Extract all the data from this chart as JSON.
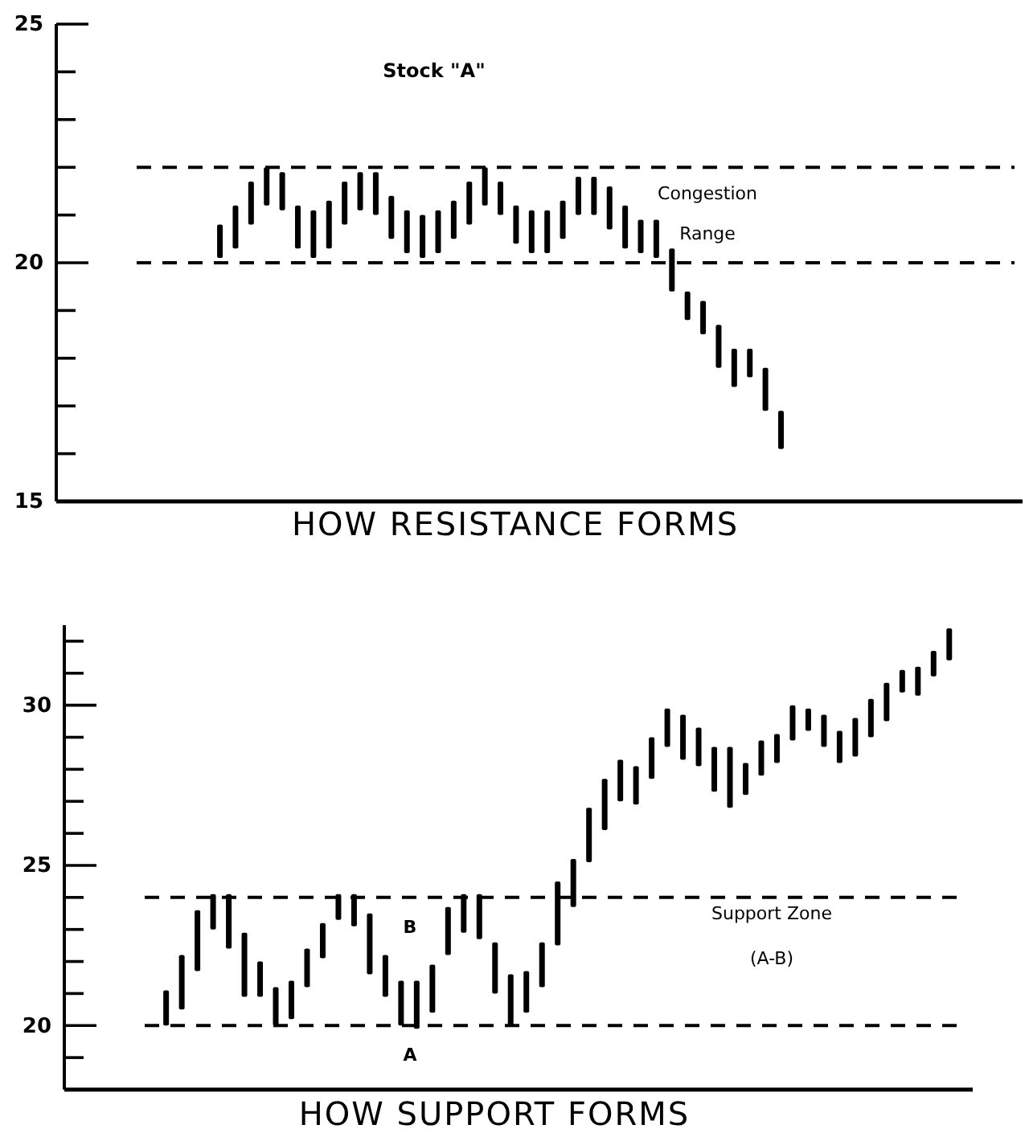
{
  "chart_data": [
    {
      "type": "bar",
      "title": "Stock \"A\"",
      "xlabel": "HOW RESISTANCE FORMS",
      "annotations": [
        "Congestion",
        "Range"
      ],
      "categories": [
        null,
        null,
        null,
        null,
        null,
        null,
        null,
        null,
        null,
        null,
        null,
        null,
        null,
        null,
        null,
        null,
        null,
        null,
        null,
        null,
        null,
        null,
        null,
        null,
        null,
        null,
        null,
        null,
        null,
        null,
        null,
        null,
        null,
        null,
        null,
        null,
        null,
        null,
        null,
        null,
        null,
        null,
        null,
        null,
        null,
        null,
        null,
        null,
        null,
        null,
        null,
        null,
        null,
        null,
        null,
        null,
        null,
        null,
        null,
        null,
        null,
        null
      ],
      "base": [
        null,
        null,
        null,
        null,
        null,
        null,
        null,
        null,
        null,
        null,
        20.1,
        20.3,
        20.8,
        21.2,
        21.1,
        20.3,
        20.1,
        20.3,
        20.8,
        21.1,
        21.0,
        20.5,
        20.2,
        20.1,
        20.2,
        20.5,
        20.8,
        21.2,
        21.0,
        20.4,
        20.2,
        20.2,
        20.5,
        21.0,
        21.0,
        20.7,
        20.3,
        20.2,
        20.1,
        19.4,
        18.8,
        18.5,
        17.8,
        17.4,
        17.6,
        16.9,
        16.1,
        null,
        null,
        null,
        null,
        null,
        null,
        null,
        null,
        null,
        null,
        null,
        null,
        null,
        null,
        null
      ],
      "values": [
        null,
        null,
        null,
        null,
        null,
        null,
        null,
        null,
        null,
        null,
        0.7,
        0.9,
        0.9,
        0.8,
        0.8,
        0.9,
        1.0,
        1.0,
        0.9,
        0.8,
        0.9,
        0.9,
        0.9,
        0.9,
        0.9,
        0.8,
        0.9,
        0.8,
        0.7,
        0.8,
        0.9,
        0.9,
        0.8,
        0.8,
        0.8,
        0.9,
        0.9,
        0.7,
        0.8,
        0.9,
        0.6,
        0.7,
        0.9,
        0.8,
        0.6,
        0.9,
        0.8,
        null,
        null,
        null,
        null,
        null,
        null,
        null,
        null,
        null,
        null,
        null,
        null,
        null,
        null,
        null
      ],
      "color": "#000000",
      "ylim": [
        15,
        25
      ],
      "yticks": [
        15,
        {
          "value": 16,
          "label": null
        },
        {
          "value": 17,
          "label": null
        },
        {
          "value": 18,
          "label": null
        },
        {
          "value": 19,
          "label": null
        },
        20,
        {
          "value": 21,
          "label": null
        },
        {
          "value": 22,
          "label": null
        },
        {
          "value": 23,
          "label": null
        },
        {
          "value": 24,
          "label": null
        },
        25
      ],
      "tick_labels": "y",
      "ref_lines": [
        {
          "axis": "y",
          "value": 22,
          "line_style": "dashed"
        },
        {
          "axis": "y",
          "value": 20,
          "line_style": "dashed"
        }
      ]
    },
    {
      "type": "bar",
      "xlabel": "HOW SUPPORT FORMS",
      "annotations": [
        "Support Zone",
        "(A-B)"
      ],
      "categories": [
        null,
        null,
        null,
        null,
        null,
        null,
        null,
        null,
        null,
        null,
        null,
        null,
        null,
        null,
        null,
        null,
        null,
        null,
        null,
        null,
        null,
        null,
        null,
        null,
        null,
        null,
        null,
        null,
        null,
        null,
        null,
        null,
        null,
        null,
        null,
        null,
        null,
        null,
        null,
        null,
        null,
        null,
        null,
        null,
        null,
        null,
        null,
        null,
        null,
        null,
        null,
        null,
        null,
        null,
        null,
        null,
        null,
        null
      ],
      "base": [
        null,
        null,
        null,
        null,
        null,
        null,
        20.0,
        20.5,
        21.7,
        23.0,
        22.4,
        20.9,
        20.9,
        20.0,
        20.2,
        21.2,
        22.1,
        23.3,
        23.1,
        21.6,
        20.9,
        20.0,
        19.9,
        20.4,
        22.2,
        22.9,
        22.7,
        21.0,
        20.0,
        20.4,
        21.2,
        22.5,
        23.7,
        25.1,
        26.1,
        27.0,
        26.9,
        27.7,
        28.7,
        28.3,
        28.1,
        27.3,
        26.8,
        27.2,
        27.8,
        28.2,
        28.9,
        29.2,
        28.7,
        28.2,
        28.4,
        29.0,
        29.5,
        30.4,
        30.3,
        30.9,
        31.4,
        null
      ],
      "values": [
        null,
        null,
        null,
        null,
        null,
        null,
        1.1,
        1.7,
        1.9,
        1.1,
        1.7,
        2.0,
        1.1,
        1.2,
        1.2,
        1.2,
        1.1,
        0.8,
        1.0,
        1.9,
        1.3,
        1.4,
        1.5,
        1.5,
        1.5,
        1.2,
        1.4,
        1.6,
        1.6,
        1.3,
        1.4,
        2.0,
        1.5,
        1.7,
        1.6,
        1.3,
        1.2,
        1.3,
        1.2,
        1.4,
        1.2,
        1.4,
        1.9,
        1.0,
        1.1,
        0.9,
        1.1,
        0.7,
        1.0,
        1.0,
        1.2,
        1.2,
        1.2,
        0.7,
        0.9,
        0.8,
        1.0,
        null
      ],
      "color": "#000000",
      "ylim": [
        18,
        32.5
      ],
      "yticks": [
        {
          "value": 19,
          "label": null
        },
        20,
        {
          "value": 21,
          "label": null
        },
        {
          "value": 22,
          "label": null
        },
        {
          "value": 23,
          "label": null
        },
        {
          "value": 24,
          "label": null
        },
        25,
        {
          "value": 26,
          "label": null
        },
        {
          "value": 27,
          "label": null
        },
        {
          "value": 28,
          "label": null
        },
        {
          "value": 29,
          "label": null
        },
        30,
        {
          "value": 31,
          "label": null
        },
        {
          "value": 32,
          "label": null
        }
      ],
      "tick_labels": "y",
      "ref_lines": [
        {
          "axis": "y",
          "value": 24,
          "label": "B",
          "line_style": "dashed"
        },
        {
          "axis": "y",
          "value": 20,
          "label": "A",
          "line_style": "dashed"
        }
      ]
    }
  ]
}
